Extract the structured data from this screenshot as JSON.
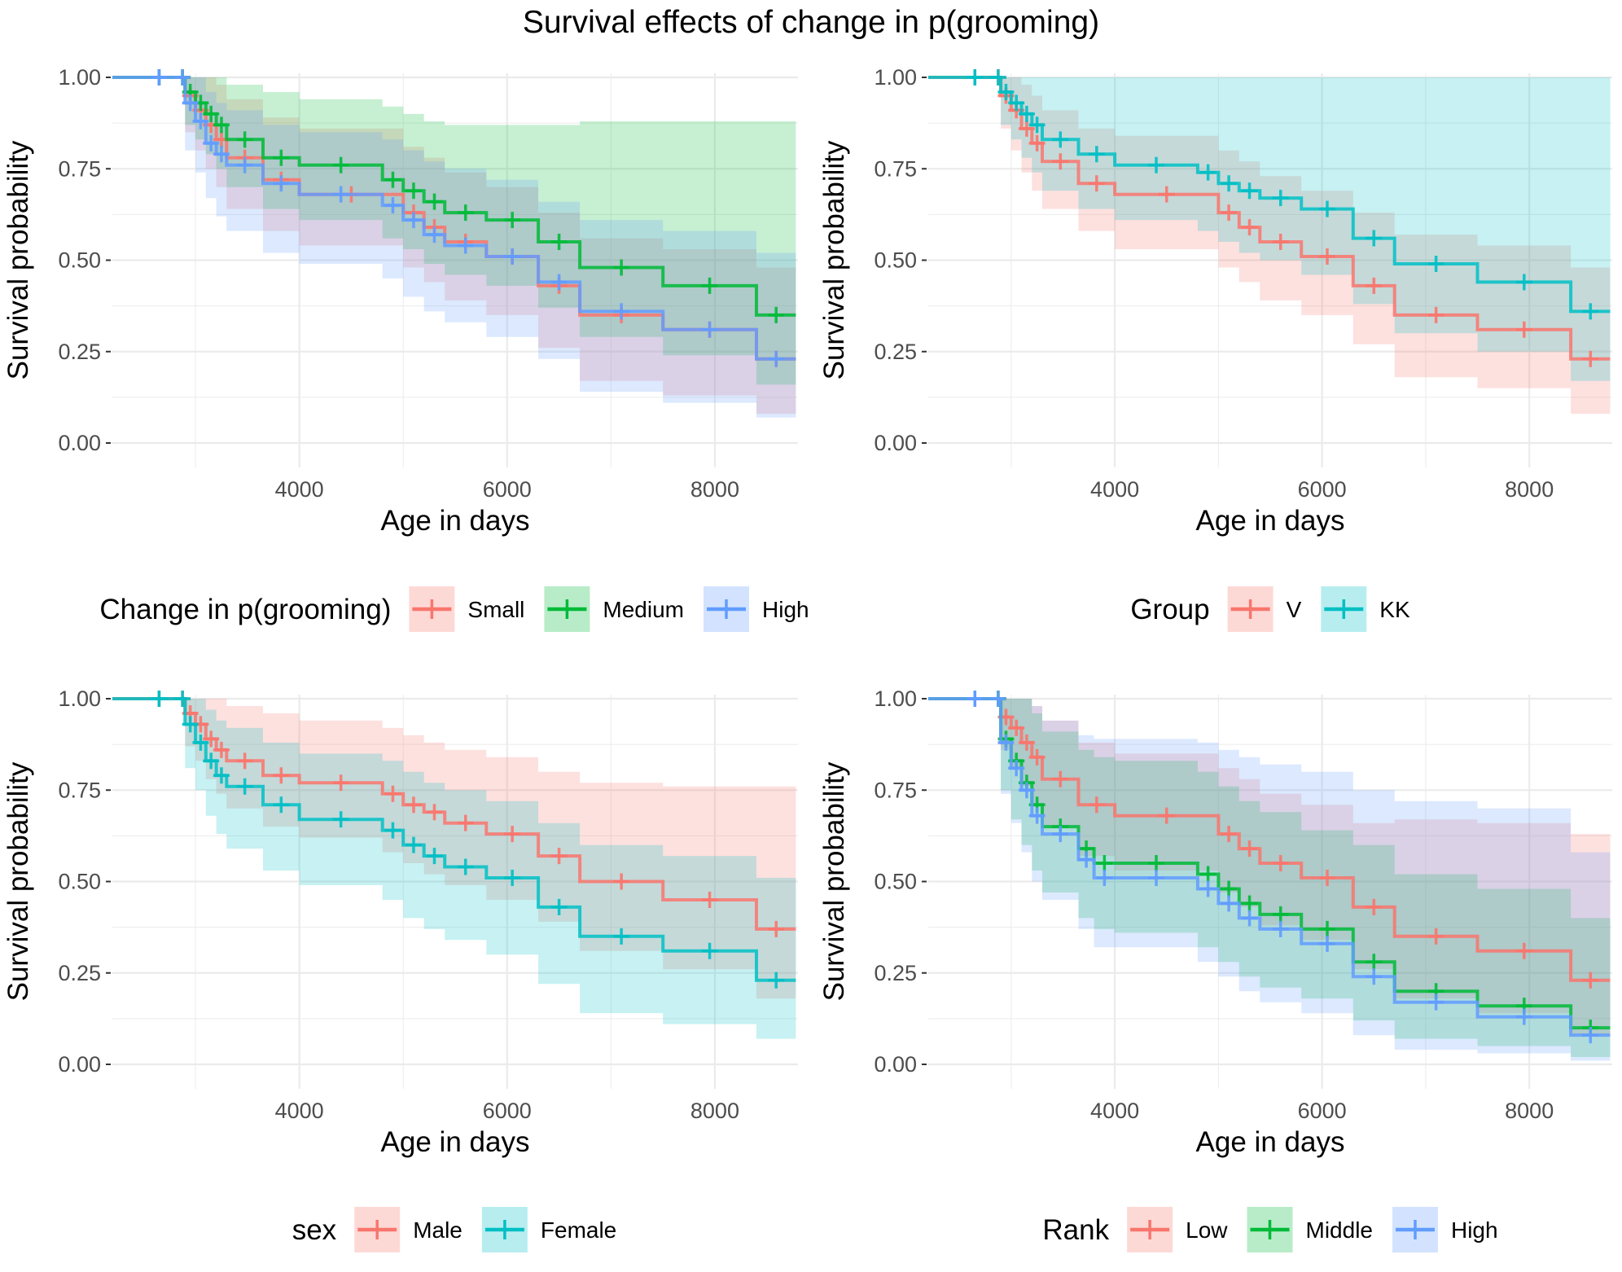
{
  "figure_title": "Survival effects of change in p(grooming)",
  "colors": {
    "red": "#F8766D",
    "green": "#00BA38",
    "blue": "#619CFF",
    "teal": "#00BFC4",
    "grid": "#ebebeb",
    "tick_text": "#4d4d4d"
  },
  "chart_data": [
    {
      "type": "line",
      "subtype": "kaplan-meier step with confidence bands",
      "xlabel": "Age in days",
      "ylabel": "Survival probability",
      "xlim": [
        2200,
        8800
      ],
      "ylim": [
        0,
        1
      ],
      "xticks": [
        4000,
        6000,
        8000
      ],
      "yticks": [
        "0.00",
        "0.25",
        "0.50",
        "0.75",
        "1.00"
      ],
      "grid": true,
      "legend": {
        "title": "Change in p(grooming)",
        "position": "bottom"
      },
      "series": [
        {
          "name": "Small",
          "color": "#F8766D",
          "x": [
            2200,
            2850,
            2900,
            3000,
            3100,
            3200,
            3300,
            3650,
            4000,
            5000,
            5200,
            5400,
            5800,
            6300,
            6700,
            7500,
            8400,
            8780
          ],
          "y": [
            1.0,
            1.0,
            0.95,
            0.91,
            0.87,
            0.83,
            0.78,
            0.72,
            0.68,
            0.63,
            0.59,
            0.55,
            0.51,
            0.43,
            0.35,
            0.31,
            0.23,
            0.23
          ],
          "ci_low": [
            1.0,
            1.0,
            0.85,
            0.8,
            0.75,
            0.7,
            0.64,
            0.58,
            0.54,
            0.48,
            0.44,
            0.39,
            0.35,
            0.26,
            0.17,
            0.13,
            0.08,
            0.08
          ],
          "ci_high": [
            1.0,
            1.0,
            1.0,
            1.0,
            1.0,
            0.98,
            0.94,
            0.89,
            0.86,
            0.81,
            0.78,
            0.74,
            0.7,
            0.63,
            0.56,
            0.53,
            0.48,
            0.48
          ]
        },
        {
          "name": "Medium",
          "color": "#00BA38",
          "x": [
            2200,
            2850,
            2900,
            3000,
            3100,
            3200,
            3300,
            3650,
            4000,
            4800,
            5000,
            5200,
            5400,
            5800,
            6300,
            6700,
            7500,
            8400,
            8780
          ],
          "y": [
            1.0,
            1.0,
            0.96,
            0.93,
            0.9,
            0.87,
            0.83,
            0.78,
            0.76,
            0.72,
            0.69,
            0.66,
            0.63,
            0.61,
            0.55,
            0.48,
            0.43,
            0.35,
            0.35
          ],
          "ci_low": [
            1.0,
            1.0,
            0.87,
            0.83,
            0.79,
            0.75,
            0.7,
            0.64,
            0.61,
            0.56,
            0.53,
            0.49,
            0.46,
            0.43,
            0.37,
            0.29,
            0.24,
            0.16,
            0.16
          ],
          "ci_high": [
            1.0,
            1.0,
            1.0,
            1.0,
            1.0,
            1.0,
            0.98,
            0.96,
            0.94,
            0.92,
            0.9,
            0.88,
            0.87,
            0.87,
            0.87,
            0.88,
            0.88,
            0.88,
            0.88
          ]
        },
        {
          "name": "High",
          "color": "#619CFF",
          "x": [
            2200,
            2850,
            2900,
            3000,
            3100,
            3200,
            3300,
            3650,
            4000,
            4800,
            5000,
            5200,
            5400,
            5800,
            6300,
            6700,
            7500,
            8400,
            8780
          ],
          "y": [
            1.0,
            1.0,
            0.93,
            0.88,
            0.82,
            0.79,
            0.76,
            0.71,
            0.68,
            0.65,
            0.61,
            0.57,
            0.54,
            0.51,
            0.44,
            0.36,
            0.31,
            0.23,
            0.23
          ],
          "ci_low": [
            1.0,
            1.0,
            0.8,
            0.74,
            0.67,
            0.62,
            0.58,
            0.52,
            0.49,
            0.45,
            0.4,
            0.36,
            0.33,
            0.29,
            0.23,
            0.14,
            0.11,
            0.07,
            0.07
          ],
          "ci_high": [
            1.0,
            1.0,
            1.0,
            1.0,
            0.96,
            0.93,
            0.91,
            0.87,
            0.85,
            0.83,
            0.8,
            0.77,
            0.75,
            0.72,
            0.66,
            0.61,
            0.58,
            0.52,
            0.52
          ]
        }
      ]
    },
    {
      "type": "line",
      "subtype": "kaplan-meier step with confidence bands",
      "xlabel": "Age in days",
      "ylabel": "Survival probability",
      "xlim": [
        2200,
        8800
      ],
      "ylim": [
        0,
        1
      ],
      "xticks": [
        4000,
        6000,
        8000
      ],
      "yticks": [
        "0.00",
        "0.25",
        "0.50",
        "0.75",
        "1.00"
      ],
      "grid": true,
      "legend": {
        "title": "Group",
        "position": "bottom"
      },
      "series": [
        {
          "name": "V",
          "color": "#F8766D",
          "x": [
            2200,
            2850,
            2900,
            3000,
            3100,
            3200,
            3300,
            3650,
            4000,
            5000,
            5200,
            5400,
            5800,
            6300,
            6700,
            7500,
            8400,
            8780
          ],
          "y": [
            1.0,
            1.0,
            0.95,
            0.91,
            0.86,
            0.82,
            0.77,
            0.71,
            0.68,
            0.63,
            0.59,
            0.55,
            0.51,
            0.43,
            0.35,
            0.31,
            0.23,
            0.23
          ],
          "ci_low": [
            1.0,
            1.0,
            0.86,
            0.8,
            0.74,
            0.69,
            0.64,
            0.58,
            0.53,
            0.48,
            0.44,
            0.39,
            0.35,
            0.27,
            0.18,
            0.15,
            0.08,
            0.08
          ],
          "ci_high": [
            1.0,
            1.0,
            1.0,
            1.0,
            0.98,
            0.95,
            0.91,
            0.86,
            0.84,
            0.8,
            0.77,
            0.73,
            0.69,
            0.63,
            0.57,
            0.54,
            0.48,
            0.48
          ]
        },
        {
          "name": "KK",
          "color": "#00BFC4",
          "x": [
            2200,
            2850,
            2900,
            3000,
            3100,
            3200,
            3300,
            3650,
            4000,
            4800,
            5000,
            5200,
            5400,
            5800,
            6300,
            6700,
            7500,
            8400,
            8780
          ],
          "y": [
            1.0,
            1.0,
            0.96,
            0.93,
            0.9,
            0.87,
            0.83,
            0.79,
            0.76,
            0.74,
            0.71,
            0.69,
            0.67,
            0.64,
            0.56,
            0.49,
            0.44,
            0.36,
            0.36
          ],
          "ci_low": [
            1.0,
            1.0,
            0.87,
            0.83,
            0.78,
            0.74,
            0.69,
            0.64,
            0.61,
            0.58,
            0.55,
            0.52,
            0.5,
            0.46,
            0.38,
            0.3,
            0.25,
            0.17,
            0.17
          ],
          "ci_high": [
            1.0,
            1.0,
            1.0,
            1.0,
            1.0,
            1.0,
            1.0,
            1.0,
            1.0,
            1.0,
            1.0,
            1.0,
            1.0,
            1.0,
            1.0,
            1.0,
            1.0,
            1.0,
            1.0
          ]
        }
      ]
    },
    {
      "type": "line",
      "subtype": "kaplan-meier step with confidence bands",
      "xlabel": "Age in days",
      "ylabel": "Survival probability",
      "xlim": [
        2200,
        8800
      ],
      "ylim": [
        0,
        1
      ],
      "xticks": [
        4000,
        6000,
        8000
      ],
      "yticks": [
        "0.00",
        "0.25",
        "0.50",
        "0.75",
        "1.00"
      ],
      "grid": true,
      "legend": {
        "title": "sex",
        "position": "bottom"
      },
      "series": [
        {
          "name": "Male",
          "color": "#F8766D",
          "x": [
            2200,
            2850,
            2900,
            3000,
            3100,
            3200,
            3300,
            3650,
            4000,
            4800,
            5000,
            5200,
            5400,
            5800,
            6300,
            6700,
            7500,
            8400,
            8780
          ],
          "y": [
            1.0,
            1.0,
            0.96,
            0.93,
            0.89,
            0.86,
            0.83,
            0.79,
            0.77,
            0.74,
            0.71,
            0.69,
            0.66,
            0.63,
            0.57,
            0.5,
            0.45,
            0.37,
            0.37
          ],
          "ci_low": [
            1.0,
            1.0,
            0.87,
            0.83,
            0.78,
            0.74,
            0.7,
            0.65,
            0.62,
            0.58,
            0.55,
            0.52,
            0.49,
            0.45,
            0.39,
            0.31,
            0.26,
            0.18,
            0.18
          ],
          "ci_high": [
            1.0,
            1.0,
            1.0,
            1.0,
            1.0,
            1.0,
            0.98,
            0.96,
            0.94,
            0.92,
            0.9,
            0.88,
            0.86,
            0.84,
            0.8,
            0.77,
            0.76,
            0.76,
            0.76
          ]
        },
        {
          "name": "Female",
          "color": "#00BFC4",
          "x": [
            2200,
            2850,
            2900,
            3000,
            3100,
            3200,
            3300,
            3650,
            4000,
            4800,
            5000,
            5200,
            5400,
            5800,
            6300,
            6700,
            7500,
            8400,
            8780
          ],
          "y": [
            1.0,
            1.0,
            0.93,
            0.88,
            0.83,
            0.79,
            0.76,
            0.71,
            0.67,
            0.64,
            0.6,
            0.57,
            0.54,
            0.51,
            0.43,
            0.35,
            0.31,
            0.23,
            0.23
          ],
          "ci_low": [
            1.0,
            1.0,
            0.81,
            0.75,
            0.68,
            0.63,
            0.59,
            0.53,
            0.49,
            0.45,
            0.4,
            0.37,
            0.34,
            0.3,
            0.22,
            0.14,
            0.11,
            0.07,
            0.07
          ],
          "ci_high": [
            1.0,
            1.0,
            1.0,
            1.0,
            0.97,
            0.94,
            0.92,
            0.88,
            0.85,
            0.83,
            0.8,
            0.77,
            0.75,
            0.72,
            0.66,
            0.6,
            0.57,
            0.51,
            0.51
          ]
        }
      ]
    },
    {
      "type": "line",
      "subtype": "kaplan-meier step with confidence bands",
      "xlabel": "Age in days",
      "ylabel": "Survival probability",
      "xlim": [
        2200,
        8800
      ],
      "ylim": [
        0,
        1
      ],
      "xticks": [
        4000,
        6000,
        8000
      ],
      "yticks": [
        "0.00",
        "0.25",
        "0.50",
        "0.75",
        "1.00"
      ],
      "grid": true,
      "legend": {
        "title": "Rank",
        "position": "bottom"
      },
      "series": [
        {
          "name": "Low",
          "color": "#F8766D",
          "x": [
            2200,
            2850,
            2900,
            3000,
            3100,
            3200,
            3300,
            3650,
            4000,
            5000,
            5200,
            5400,
            5800,
            6300,
            6700,
            7500,
            8400,
            8780
          ],
          "y": [
            1.0,
            1.0,
            0.95,
            0.92,
            0.88,
            0.84,
            0.78,
            0.71,
            0.68,
            0.63,
            0.59,
            0.55,
            0.51,
            0.43,
            0.35,
            0.31,
            0.23,
            0.23
          ],
          "ci_low": [
            1.0,
            1.0,
            0.86,
            0.81,
            0.76,
            0.71,
            0.65,
            0.57,
            0.53,
            0.47,
            0.43,
            0.38,
            0.34,
            0.26,
            0.18,
            0.14,
            0.08,
            0.08
          ],
          "ci_high": [
            1.0,
            1.0,
            1.0,
            1.0,
            1.0,
            0.98,
            0.94,
            0.88,
            0.85,
            0.81,
            0.78,
            0.74,
            0.71,
            0.66,
            0.67,
            0.66,
            0.63,
            0.63
          ]
        },
        {
          "name": "Middle",
          "color": "#00BA38",
          "x": [
            2200,
            2850,
            2900,
            3000,
            3100,
            3200,
            3300,
            3650,
            3800,
            4000,
            4800,
            5000,
            5200,
            5400,
            5800,
            6300,
            6700,
            7500,
            8400,
            8780
          ],
          "y": [
            1.0,
            1.0,
            0.89,
            0.83,
            0.77,
            0.71,
            0.65,
            0.59,
            0.55,
            0.55,
            0.52,
            0.48,
            0.44,
            0.41,
            0.37,
            0.28,
            0.2,
            0.16,
            0.1,
            0.1
          ],
          "ci_low": [
            1.0,
            1.0,
            0.75,
            0.67,
            0.6,
            0.53,
            0.47,
            0.4,
            0.37,
            0.36,
            0.32,
            0.28,
            0.24,
            0.21,
            0.18,
            0.12,
            0.07,
            0.05,
            0.02,
            0.02
          ],
          "ci_high": [
            1.0,
            1.0,
            1.0,
            1.0,
            1.0,
            0.96,
            0.91,
            0.86,
            0.84,
            0.83,
            0.8,
            0.76,
            0.72,
            0.69,
            0.64,
            0.6,
            0.52,
            0.48,
            0.4,
            0.4
          ]
        },
        {
          "name": "High",
          "color": "#619CFF",
          "x": [
            2200,
            2850,
            2900,
            3000,
            3100,
            3200,
            3300,
            3650,
            3800,
            4000,
            4800,
            5000,
            5200,
            5400,
            5800,
            6300,
            6700,
            7500,
            8400,
            8780
          ],
          "y": [
            1.0,
            1.0,
            0.88,
            0.81,
            0.75,
            0.68,
            0.63,
            0.56,
            0.51,
            0.51,
            0.48,
            0.44,
            0.4,
            0.37,
            0.33,
            0.24,
            0.17,
            0.13,
            0.08,
            0.08
          ],
          "ci_low": [
            1.0,
            1.0,
            0.74,
            0.66,
            0.58,
            0.5,
            0.45,
            0.37,
            0.32,
            0.32,
            0.28,
            0.24,
            0.2,
            0.17,
            0.14,
            0.08,
            0.04,
            0.03,
            0.01,
            0.01
          ],
          "ci_high": [
            1.0,
            1.0,
            1.0,
            1.0,
            1.0,
            0.98,
            0.94,
            0.9,
            0.89,
            0.89,
            0.88,
            0.86,
            0.84,
            0.82,
            0.8,
            0.75,
            0.72,
            0.7,
            0.58,
            0.58
          ]
        }
      ]
    }
  ]
}
